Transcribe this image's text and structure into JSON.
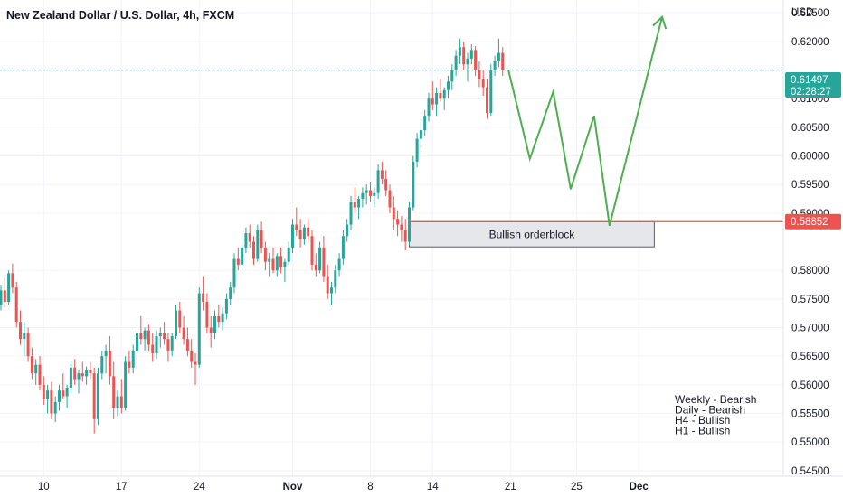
{
  "chart_data": {
    "type": "candlestick",
    "title": "New Zealand Dollar / U.S. Dollar, 4h, FXCM",
    "currency_label": "USD",
    "ylim": [
      0.5445,
      0.6263
    ],
    "y_ticks": [
      "0.62500",
      "0.62000",
      "0.61000",
      "0.60500",
      "0.60000",
      "0.59500",
      "0.59000",
      "0.58000",
      "0.57500",
      "0.57000",
      "0.56500",
      "0.56000",
      "0.55500",
      "0.55000",
      "0.54500"
    ],
    "x_ticks": [
      {
        "label": "10",
        "idx": 11
      },
      {
        "label": "17",
        "idx": 31
      },
      {
        "label": "24",
        "idx": 51
      },
      {
        "label": "Nov",
        "idx": 75
      },
      {
        "label": "8",
        "idx": 95
      },
      {
        "label": "14",
        "idx": 111
      },
      {
        "label": "21",
        "idx": 131
      },
      {
        "label": "25",
        "idx": 148
      },
      {
        "label": "Dec",
        "idx": 164
      }
    ],
    "current_price": "0.61497",
    "countdown": "02:28:27",
    "level_price": "0.58852",
    "level_value": 0.58852,
    "orderblock": {
      "label": "Bullish orderblock",
      "top": 0.5885,
      "bottom": 0.5841,
      "start_idx": 105,
      "end_idx": 168
    },
    "projection": [
      {
        "idx": 130.5,
        "value": 0.615
      },
      {
        "idx": 136,
        "value": 0.5995
      },
      {
        "idx": 142,
        "value": 0.6112
      },
      {
        "idx": 146.5,
        "value": 0.5942
      },
      {
        "idx": 152.5,
        "value": 0.607
      },
      {
        "idx": 156.5,
        "value": 0.5878
      },
      {
        "idx": 170,
        "value": 0.6243
      }
    ],
    "bias_notes": [
      "Weekly - Bearish",
      "Daily - Bearish",
      "H4 - Bullish",
      "H1 - Bullish"
    ],
    "colors": {
      "up": "#26a69a",
      "down": "#ef5350",
      "projection": "#4caf50",
      "level": "#ef5350",
      "current": "#26a69a",
      "grid": "#f0f3fa"
    },
    "candles": [
      [
        0.574,
        0.5775,
        0.573,
        0.5765
      ],
      [
        0.5765,
        0.579,
        0.5735,
        0.5745
      ],
      [
        0.5745,
        0.58,
        0.574,
        0.5795
      ],
      [
        0.5795,
        0.5812,
        0.576,
        0.577
      ],
      [
        0.577,
        0.578,
        0.57,
        0.571
      ],
      [
        0.571,
        0.573,
        0.567,
        0.568
      ],
      [
        0.568,
        0.571,
        0.565,
        0.569
      ],
      [
        0.569,
        0.57,
        0.564,
        0.565
      ],
      [
        0.565,
        0.5665,
        0.561,
        0.562
      ],
      [
        0.562,
        0.5645,
        0.56,
        0.5635
      ],
      [
        0.5635,
        0.565,
        0.559,
        0.56
      ],
      [
        0.56,
        0.5615,
        0.5565,
        0.5575
      ],
      [
        0.5575,
        0.56,
        0.555,
        0.559
      ],
      [
        0.559,
        0.5605,
        0.554,
        0.555
      ],
      [
        0.555,
        0.558,
        0.5535,
        0.557
      ],
      [
        0.557,
        0.56,
        0.5555,
        0.559
      ],
      [
        0.559,
        0.562,
        0.5575,
        0.558
      ],
      [
        0.558,
        0.56,
        0.556,
        0.5595
      ],
      [
        0.5595,
        0.564,
        0.5585,
        0.563
      ],
      [
        0.563,
        0.5645,
        0.56,
        0.561
      ],
      [
        0.561,
        0.5625,
        0.5585,
        0.562
      ],
      [
        0.562,
        0.564,
        0.5605,
        0.5615
      ],
      [
        0.5615,
        0.5632,
        0.56,
        0.5625
      ],
      [
        0.5625,
        0.564,
        0.561,
        0.562
      ],
      [
        0.562,
        0.563,
        0.5515,
        0.554
      ],
      [
        0.554,
        0.563,
        0.553,
        0.562
      ],
      [
        0.562,
        0.566,
        0.561,
        0.565
      ],
      [
        0.565,
        0.567,
        0.562,
        0.566
      ],
      [
        0.566,
        0.5685,
        0.56,
        0.5615
      ],
      [
        0.5615,
        0.564,
        0.554,
        0.556
      ],
      [
        0.556,
        0.559,
        0.5545,
        0.558
      ],
      [
        0.558,
        0.561,
        0.555,
        0.556
      ],
      [
        0.556,
        0.565,
        0.5555,
        0.564
      ],
      [
        0.564,
        0.566,
        0.562,
        0.563
      ],
      [
        0.563,
        0.567,
        0.562,
        0.566
      ],
      [
        0.566,
        0.57,
        0.565,
        0.569
      ],
      [
        0.569,
        0.572,
        0.567,
        0.568
      ],
      [
        0.568,
        0.57,
        0.566,
        0.5695
      ],
      [
        0.5695,
        0.5705,
        0.566,
        0.567
      ],
      [
        0.567,
        0.569,
        0.564,
        0.5655
      ],
      [
        0.5655,
        0.5695,
        0.5645,
        0.5685
      ],
      [
        0.5685,
        0.57,
        0.5665,
        0.569
      ],
      [
        0.569,
        0.571,
        0.567,
        0.568
      ],
      [
        0.568,
        0.569,
        0.564,
        0.566
      ],
      [
        0.566,
        0.569,
        0.565,
        0.5685
      ],
      [
        0.5685,
        0.574,
        0.568,
        0.573
      ],
      [
        0.573,
        0.5745,
        0.569,
        0.57
      ],
      [
        0.57,
        0.572,
        0.567,
        0.568
      ],
      [
        0.568,
        0.57,
        0.565,
        0.566
      ],
      [
        0.566,
        0.568,
        0.563,
        0.564
      ],
      [
        0.564,
        0.5655,
        0.56,
        0.5635
      ],
      [
        0.5635,
        0.577,
        0.563,
        0.576
      ],
      [
        0.576,
        0.579,
        0.573,
        0.5745
      ],
      [
        0.5745,
        0.576,
        0.569,
        0.57
      ],
      [
        0.57,
        0.572,
        0.5665,
        0.569
      ],
      [
        0.569,
        0.573,
        0.568,
        0.572
      ],
      [
        0.572,
        0.574,
        0.57,
        0.571
      ],
      [
        0.571,
        0.5735,
        0.5695,
        0.5725
      ],
      [
        0.5725,
        0.576,
        0.5715,
        0.575
      ],
      [
        0.575,
        0.578,
        0.574,
        0.577
      ],
      [
        0.577,
        0.583,
        0.576,
        0.582
      ],
      [
        0.582,
        0.584,
        0.58,
        0.581
      ],
      [
        0.581,
        0.585,
        0.58,
        0.584
      ],
      [
        0.584,
        0.5875,
        0.583,
        0.5865
      ],
      [
        0.5865,
        0.588,
        0.584,
        0.585
      ],
      [
        0.585,
        0.586,
        0.581,
        0.582
      ],
      [
        0.582,
        0.588,
        0.5815,
        0.587
      ],
      [
        0.587,
        0.5885,
        0.583,
        0.584
      ],
      [
        0.584,
        0.585,
        0.58,
        0.5815
      ],
      [
        0.5815,
        0.583,
        0.579,
        0.582
      ],
      [
        0.582,
        0.584,
        0.5795,
        0.58
      ],
      [
        0.58,
        0.583,
        0.579,
        0.5825
      ],
      [
        0.5825,
        0.584,
        0.5795,
        0.5805
      ],
      [
        0.5805,
        0.582,
        0.578,
        0.5815
      ],
      [
        0.5815,
        0.585,
        0.581,
        0.584
      ],
      [
        0.584,
        0.589,
        0.583,
        0.588
      ],
      [
        0.588,
        0.591,
        0.586,
        0.587
      ],
      [
        0.587,
        0.589,
        0.584,
        0.5855
      ],
      [
        0.5855,
        0.588,
        0.5845,
        0.5875
      ],
      [
        0.5875,
        0.589,
        0.585,
        0.586
      ],
      [
        0.586,
        0.587,
        0.58,
        0.581
      ],
      [
        0.581,
        0.583,
        0.579,
        0.58
      ],
      [
        0.58,
        0.585,
        0.5795,
        0.584
      ],
      [
        0.584,
        0.586,
        0.578,
        0.579
      ],
      [
        0.579,
        0.581,
        0.575,
        0.576
      ],
      [
        0.576,
        0.578,
        0.574,
        0.577
      ],
      [
        0.577,
        0.581,
        0.576,
        0.58
      ],
      [
        0.58,
        0.583,
        0.579,
        0.582
      ],
      [
        0.582,
        0.587,
        0.581,
        0.586
      ],
      [
        0.586,
        0.589,
        0.585,
        0.588
      ],
      [
        0.588,
        0.593,
        0.587,
        0.592
      ],
      [
        0.592,
        0.5945,
        0.59,
        0.591
      ],
      [
        0.591,
        0.593,
        0.589,
        0.5925
      ],
      [
        0.5925,
        0.5945,
        0.591,
        0.5935
      ],
      [
        0.5935,
        0.595,
        0.5915,
        0.594
      ],
      [
        0.594,
        0.5955,
        0.592,
        0.593
      ],
      [
        0.593,
        0.5945,
        0.591,
        0.5935
      ],
      [
        0.5935,
        0.5985,
        0.5925,
        0.5975
      ],
      [
        0.5975,
        0.599,
        0.595,
        0.596
      ],
      [
        0.596,
        0.5975,
        0.593,
        0.594
      ],
      [
        0.594,
        0.595,
        0.59,
        0.591
      ],
      [
        0.591,
        0.593,
        0.587,
        0.589
      ],
      [
        0.589,
        0.5905,
        0.586,
        0.588
      ],
      [
        0.588,
        0.5895,
        0.585,
        0.587
      ],
      [
        0.587,
        0.589,
        0.5835,
        0.585
      ],
      [
        0.585,
        0.592,
        0.5845,
        0.591
      ],
      [
        0.591,
        0.6,
        0.5905,
        0.599
      ],
      [
        0.599,
        0.604,
        0.598,
        0.603
      ],
      [
        0.603,
        0.606,
        0.601,
        0.6045
      ],
      [
        0.6045,
        0.608,
        0.6035,
        0.607
      ],
      [
        0.607,
        0.611,
        0.606,
        0.61
      ],
      [
        0.61,
        0.613,
        0.608,
        0.609
      ],
      [
        0.609,
        0.612,
        0.607,
        0.611
      ],
      [
        0.611,
        0.6135,
        0.6095,
        0.61
      ],
      [
        0.61,
        0.612,
        0.608,
        0.6115
      ],
      [
        0.6115,
        0.614,
        0.61,
        0.613
      ],
      [
        0.613,
        0.616,
        0.6115,
        0.615
      ],
      [
        0.615,
        0.6185,
        0.614,
        0.6175
      ],
      [
        0.6175,
        0.6205,
        0.616,
        0.619
      ],
      [
        0.619,
        0.62,
        0.615,
        0.616
      ],
      [
        0.616,
        0.618,
        0.613,
        0.617
      ],
      [
        0.617,
        0.6195,
        0.616,
        0.6185
      ],
      [
        0.6185,
        0.6192,
        0.614,
        0.615
      ],
      [
        0.615,
        0.6165,
        0.612,
        0.6135
      ],
      [
        0.6135,
        0.615,
        0.6105,
        0.612
      ],
      [
        0.612,
        0.6135,
        0.6065,
        0.6075
      ],
      [
        0.6075,
        0.616,
        0.607,
        0.615
      ],
      [
        0.615,
        0.6175,
        0.614,
        0.6165
      ],
      [
        0.6165,
        0.6205,
        0.6155,
        0.618
      ],
      [
        0.618,
        0.619,
        0.614,
        0.615
      ]
    ]
  }
}
